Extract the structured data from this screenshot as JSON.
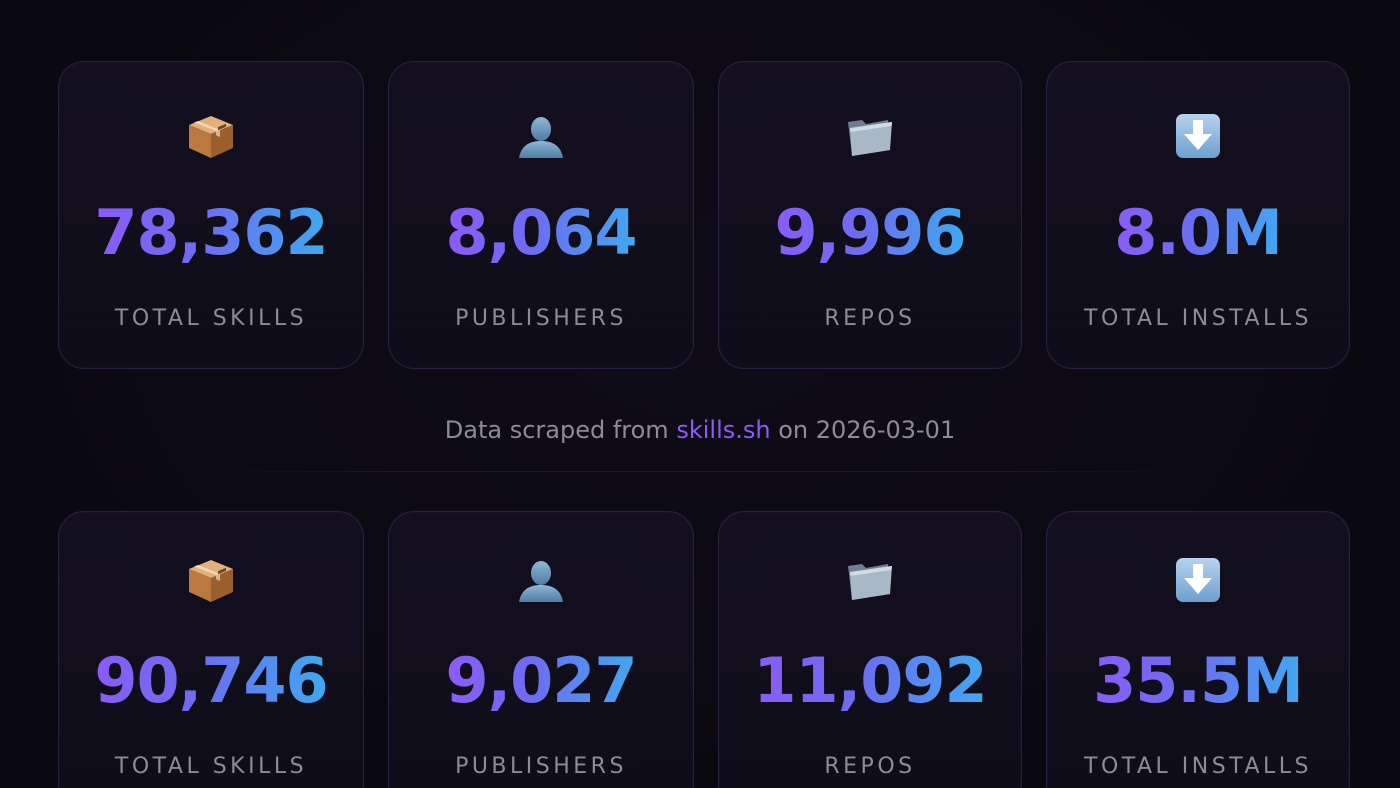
{
  "snapshots": [
    {
      "stats": [
        {
          "icon": "package-icon",
          "value": "78,362",
          "label": "TOTAL SKILLS"
        },
        {
          "icon": "user-icon",
          "value": "8,064",
          "label": "PUBLISHERS"
        },
        {
          "icon": "folder-icon",
          "value": "9,996",
          "label": "REPOS"
        },
        {
          "icon": "download-arrow-icon",
          "value": "8.0M",
          "label": "TOTAL INSTALLS"
        }
      ]
    },
    {
      "stats": [
        {
          "icon": "package-icon",
          "value": "90,746",
          "label": "TOTAL SKILLS"
        },
        {
          "icon": "user-icon",
          "value": "9,027",
          "label": "PUBLISHERS"
        },
        {
          "icon": "folder-icon",
          "value": "11,092",
          "label": "REPOS"
        },
        {
          "icon": "download-arrow-icon",
          "value": "35.5M",
          "label": "TOTAL INSTALLS"
        }
      ]
    }
  ],
  "caption": {
    "prefix": "Data scraped from ",
    "link_text": "skills.sh",
    "suffix": " on 2026-03-01"
  },
  "colors": {
    "background": "#0c0a12",
    "card_border": "#2a2140",
    "value_gradient_start": "#8b5cf6",
    "value_gradient_end": "#3fa9f0",
    "label": "#8e8a98",
    "link": "#8b5cf6"
  }
}
